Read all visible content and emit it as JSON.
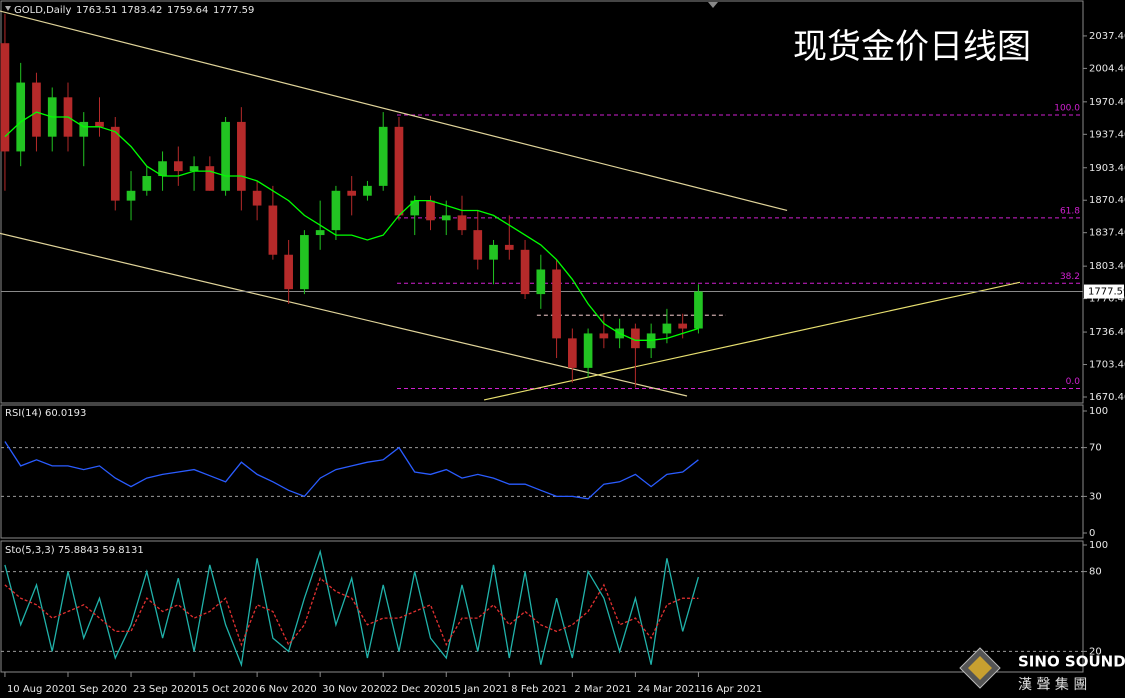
{
  "chart_data": [
    {
      "type": "candlestick",
      "title": "现货金价日线图",
      "header": "GOLD,Daily",
      "ohlc_header": [
        1763.51,
        1783.42,
        1759.64,
        1777.59
      ],
      "x": [
        0,
        4,
        8,
        12,
        16,
        20,
        24,
        28,
        32,
        36,
        40,
        44,
        48,
        52,
        56,
        60,
        64,
        68,
        72,
        76,
        80,
        84,
        88,
        92,
        96,
        100,
        104,
        108,
        112,
        116,
        120,
        124,
        128,
        132,
        136,
        140,
        144,
        148,
        152,
        156,
        160,
        164,
        168,
        172,
        176
      ],
      "open": [
        2030,
        1920,
        1990,
        1935,
        1975,
        1935,
        1950,
        1945,
        1870,
        1880,
        1895,
        1910,
        1900,
        1905,
        1880,
        1950,
        1880,
        1865,
        1815,
        1780,
        1835,
        1840,
        1880,
        1875,
        1885,
        1945,
        1855,
        1870,
        1850,
        1855,
        1840,
        1810,
        1825,
        1820,
        1775,
        1800,
        1730,
        1700,
        1735,
        1730,
        1740,
        1720,
        1735,
        1745,
        1740
      ],
      "high": [
        2060,
        2010,
        2000,
        1985,
        1990,
        1960,
        1975,
        1955,
        1900,
        1905,
        1920,
        1925,
        1915,
        1915,
        1955,
        1965,
        1890,
        1885,
        1830,
        1840,
        1870,
        1885,
        1895,
        1890,
        1960,
        1955,
        1875,
        1875,
        1870,
        1875,
        1860,
        1830,
        1855,
        1830,
        1815,
        1810,
        1740,
        1740,
        1755,
        1750,
        1745,
        1745,
        1760,
        1755,
        1785
      ],
      "low": [
        1880,
        1905,
        1920,
        1920,
        1920,
        1905,
        1935,
        1860,
        1850,
        1875,
        1880,
        1885,
        1880,
        1880,
        1875,
        1860,
        1850,
        1810,
        1765,
        1775,
        1820,
        1830,
        1855,
        1870,
        1880,
        1850,
        1835,
        1840,
        1835,
        1835,
        1800,
        1785,
        1810,
        1770,
        1760,
        1710,
        1685,
        1690,
        1720,
        1720,
        1680,
        1710,
        1725,
        1730,
        1735
      ],
      "close": [
        1920,
        1990,
        1935,
        1975,
        1935,
        1950,
        1945,
        1870,
        1880,
        1895,
        1910,
        1900,
        1905,
        1880,
        1950,
        1880,
        1865,
        1815,
        1780,
        1835,
        1840,
        1880,
        1875,
        1885,
        1945,
        1855,
        1870,
        1850,
        1855,
        1840,
        1810,
        1825,
        1820,
        1775,
        1800,
        1730,
        1700,
        1735,
        1730,
        1740,
        1720,
        1735,
        1745,
        1740,
        1777.59
      ],
      "up_color": "#22c422",
      "down_color": "#b52a2a",
      "ma": {
        "color": "#00ff00",
        "values": [
          1935,
          1950,
          1960,
          1955,
          1955,
          1945,
          1945,
          1940,
          1925,
          1905,
          1895,
          1895,
          1900,
          1900,
          1895,
          1895,
          1890,
          1880,
          1870,
          1855,
          1845,
          1835,
          1835,
          1830,
          1835,
          1855,
          1870,
          1870,
          1865,
          1860,
          1860,
          1855,
          1845,
          1835,
          1825,
          1810,
          1790,
          1765,
          1745,
          1735,
          1728,
          1728,
          1730,
          1735,
          1740
        ]
      },
      "xlim": [
        -1,
        273.6
      ],
      "xticks": [
        {
          "value": 0,
          "label": "10 Aug 2020"
        },
        {
          "value": 16,
          "label": "1 Sep 2020"
        },
        {
          "value": 32,
          "label": "23 Sep 2020"
        },
        {
          "value": 48,
          "label": "15 Oct 2020"
        },
        {
          "value": 64,
          "label": "6 Nov 2020"
        },
        {
          "value": 80,
          "label": "30 Nov 2020"
        },
        {
          "value": 96,
          "label": "22 Dec 2020"
        },
        {
          "value": 112,
          "label": "15 Jan 2021"
        },
        {
          "value": 128,
          "label": "8 Feb 2021"
        },
        {
          "value": 144,
          "label": "2 Mar 2021"
        },
        {
          "value": 160,
          "label": "24 Mar 2021"
        },
        {
          "value": 176,
          "label": "16 Apr 2021"
        }
      ],
      "ylim": [
        1664.3,
        2072.9
      ],
      "yticks": [
        {
          "value": 2037.4,
          "label": "2037.40"
        },
        {
          "value": 2004.4,
          "label": "2004.40"
        },
        {
          "value": 1970.4,
          "label": "1970.40"
        },
        {
          "value": 1937.4,
          "label": "1937.40"
        },
        {
          "value": 1903.4,
          "label": "1903.40"
        },
        {
          "value": 1870.4,
          "label": "1870.40"
        },
        {
          "value": 1837.4,
          "label": "1837.40"
        },
        {
          "value": 1803.4,
          "label": "1803.40"
        },
        {
          "value": 1770.4,
          "label": "1770.40"
        },
        {
          "value": 1736.4,
          "label": "1736.40"
        },
        {
          "value": 1703.4,
          "label": "1703.40"
        },
        {
          "value": 1670.4,
          "label": "1670.40"
        }
      ],
      "last_price": 1777.59,
      "fib_levels": [
        {
          "value": 1957,
          "label": "100.0"
        },
        {
          "value": 1852.5,
          "label": "61.8"
        },
        {
          "value": 1786,
          "label": "38.2"
        },
        {
          "value": 1679,
          "label": "0.0"
        }
      ],
      "fib_color": "#d020d0",
      "trendlines": [
        {
          "x": [
            -1.27,
            198.5
          ],
          "y": [
            2062.7,
            1860
          ],
          "color": "#e0d49a"
        },
        {
          "x": [
            -1.27,
            173.1
          ],
          "y": [
            1836.7,
            1671.4
          ],
          "color": "#e0d49a"
        },
        {
          "x": [
            121.6,
            257.6
          ],
          "y": [
            1667.4,
            1787
          ],
          "color": "#e8e070"
        },
        {
          "x": [
            135,
            183
          ],
          "y": [
            1753.5,
            1753.5
          ],
          "color": "#c8a8a8",
          "dashed": true
        }
      ]
    },
    {
      "type": "line",
      "title": "RSI(14) 60.0193",
      "x": [
        0,
        4,
        8,
        12,
        16,
        20,
        24,
        28,
        32,
        36,
        40,
        44,
        48,
        52,
        56,
        60,
        64,
        68,
        72,
        76,
        80,
        84,
        88,
        92,
        96,
        100,
        104,
        108,
        112,
        116,
        120,
        124,
        128,
        132,
        136,
        140,
        144,
        148,
        152,
        156,
        160,
        164,
        168,
        172,
        176
      ],
      "values": [
        75,
        55,
        60,
        55,
        55,
        52,
        55,
        45,
        38,
        45,
        48,
        50,
        52,
        47,
        42,
        58,
        48,
        42,
        35,
        30,
        45,
        52,
        55,
        58,
        60,
        70,
        50,
        48,
        52,
        45,
        48,
        45,
        40,
        40,
        35,
        30,
        30,
        28,
        40,
        42,
        48,
        38,
        48,
        50,
        60.0193
      ],
      "color": "#2a5cff",
      "ylim": [
        0,
        100
      ],
      "yticks": [
        100,
        70,
        30,
        0
      ],
      "levels": [
        70,
        30
      ]
    },
    {
      "type": "stochastic",
      "title": "Sto(5,3,3) 75.8843 59.8131",
      "x": [
        0,
        4,
        8,
        12,
        16,
        20,
        24,
        28,
        32,
        36,
        40,
        44,
        48,
        52,
        56,
        60,
        64,
        68,
        72,
        76,
        80,
        84,
        88,
        92,
        96,
        100,
        104,
        108,
        112,
        116,
        120,
        124,
        128,
        132,
        136,
        140,
        144,
        148,
        152,
        156,
        160,
        164,
        168,
        172,
        176
      ],
      "main": {
        "color": "#20b2aa",
        "values": [
          85,
          40,
          70,
          20,
          80,
          30,
          60,
          15,
          40,
          80,
          30,
          75,
          20,
          85,
          40,
          10,
          90,
          30,
          20,
          60,
          95,
          40,
          75,
          15,
          70,
          20,
          80,
          30,
          15,
          70,
          20,
          85,
          15,
          80,
          10,
          60,
          15,
          80,
          60,
          20,
          60,
          10,
          90,
          35,
          75.8843
        ]
      },
      "signal": {
        "color": "#e03030",
        "values": [
          70,
          60,
          55,
          45,
          50,
          55,
          45,
          35,
          35,
          60,
          50,
          55,
          45,
          50,
          60,
          25,
          55,
          50,
          25,
          40,
          75,
          65,
          60,
          40,
          45,
          45,
          50,
          55,
          25,
          45,
          45,
          55,
          40,
          50,
          40,
          35,
          40,
          50,
          70,
          40,
          45,
          30,
          55,
          60,
          59.8131
        ]
      },
      "ylim": [
        4.5,
        103
      ],
      "yticks": [
        100,
        80,
        20
      ],
      "levels": [
        80,
        20
      ]
    }
  ],
  "logo": {
    "name": "SINO SOUND",
    "chinese": "漢 聲 集 團"
  }
}
